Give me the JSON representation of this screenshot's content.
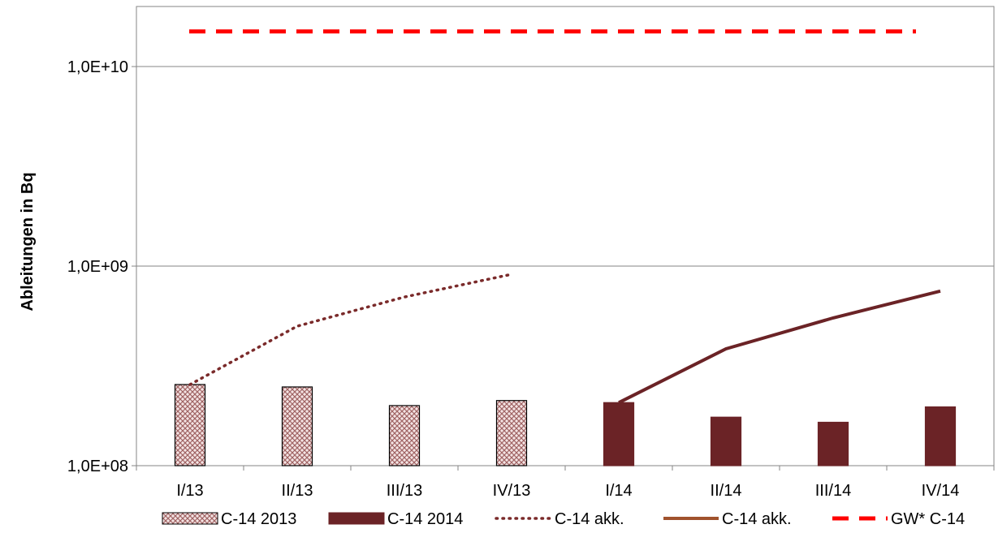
{
  "chart_data": {
    "type": "bar",
    "categories": [
      "I/13",
      "II/13",
      "III/13",
      "IV/13",
      "I/14",
      "II/14",
      "III/14",
      "IV/14"
    ],
    "ylabel": "Ableitungen in  Bq",
    "yscale": "log",
    "ylim": [
      100000000,
      20000000000
    ],
    "yticks": [
      {
        "value": 100000000,
        "label": "1,0E+08"
      },
      {
        "value": 1000000000,
        "label": "1,0E+09"
      },
      {
        "value": 10000000000,
        "label": "1,0E+10"
      }
    ],
    "grid": true,
    "legend_position": "bottom",
    "series": [
      {
        "name": "C-14 2013",
        "kind": "bar",
        "color": "#c8a0a0",
        "pattern": "crosshatch",
        "values": [
          255000000,
          248000000,
          200000000,
          212000000,
          null,
          null,
          null,
          null
        ]
      },
      {
        "name": "C-14 2014",
        "kind": "bar",
        "color": "#6b2326",
        "values": [
          null,
          null,
          null,
          null,
          207000000,
          175000000,
          165000000,
          197000000
        ]
      },
      {
        "name": "C-14 akk.",
        "kind": "line",
        "style": "dotted",
        "color": "#7a2a2a",
        "values": [
          255000000,
          500000000,
          700000000,
          910000000,
          null,
          null,
          null,
          null
        ]
      },
      {
        "name": "C-14 akk.",
        "kind": "line",
        "style": "solid",
        "color": "#6b2326",
        "legend_color": "#a0522d",
        "values": [
          null,
          null,
          null,
          null,
          207000000,
          385000000,
          550000000,
          750000000
        ]
      },
      {
        "name": "GW* C-14",
        "kind": "line",
        "style": "dashed",
        "color": "#ff0000",
        "values": [
          15000000000,
          15000000000,
          15000000000,
          15000000000,
          15000000000,
          15000000000,
          15000000000,
          15000000000
        ]
      }
    ]
  }
}
